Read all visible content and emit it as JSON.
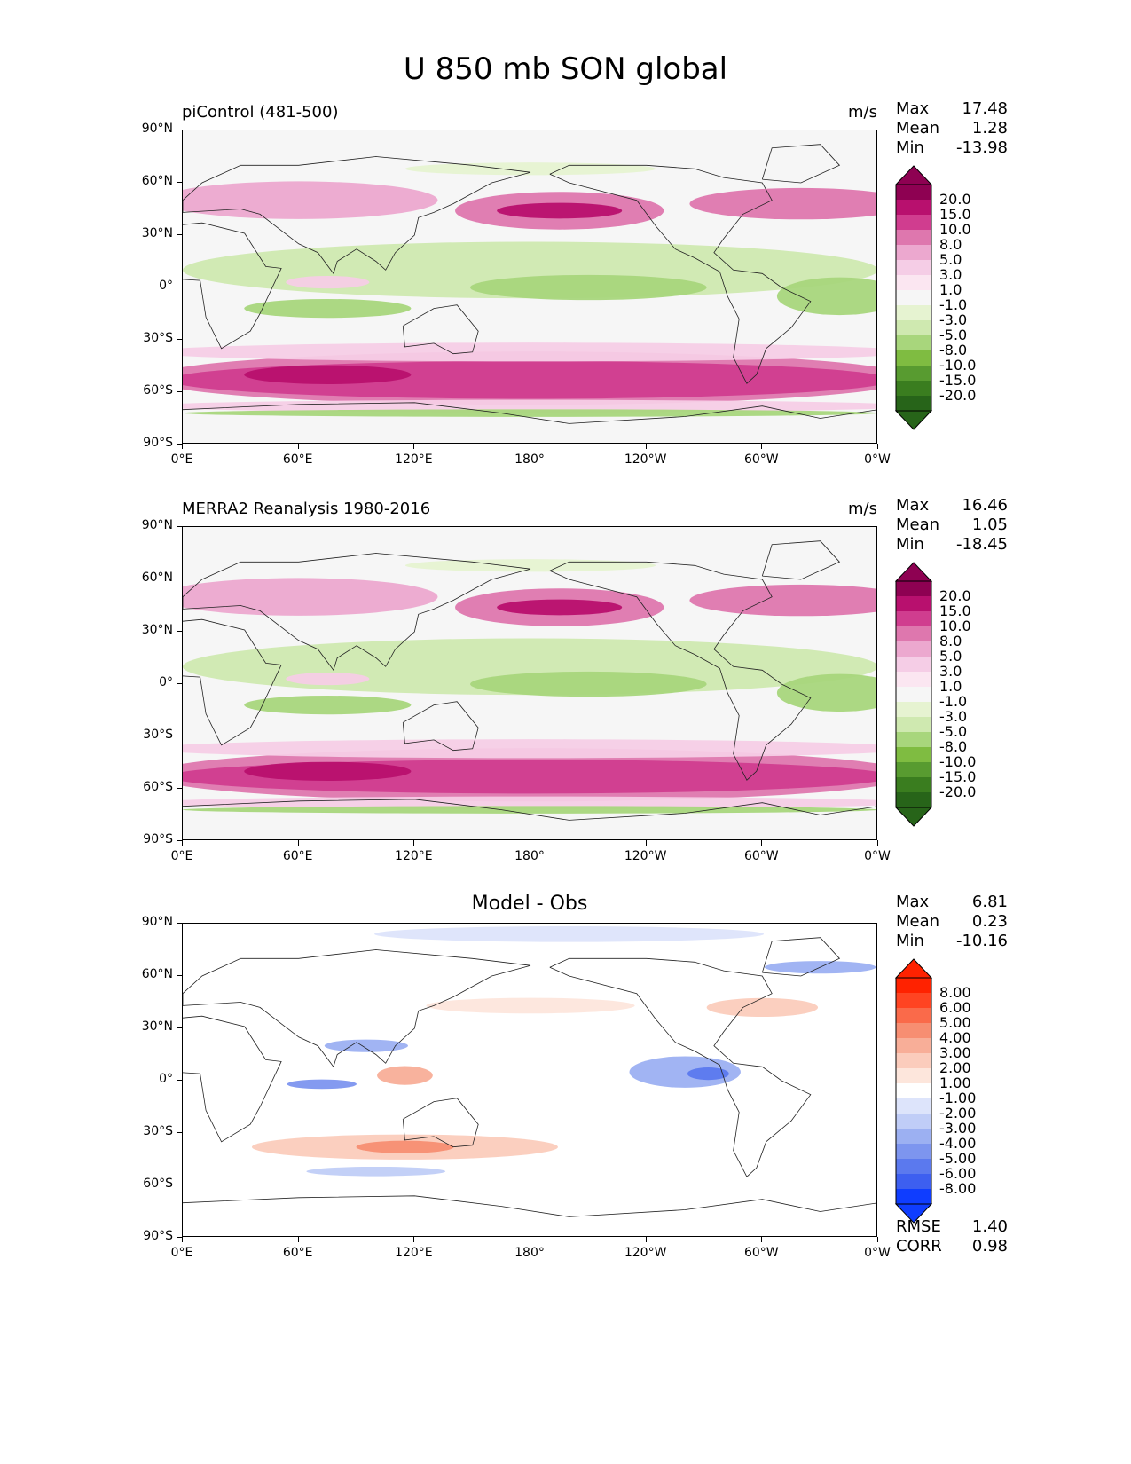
{
  "title": "U 850 mb SON global",
  "axes": {
    "x_ticks": [
      "0°E",
      "60°E",
      "120°E",
      "180°",
      "120°W",
      "60°W",
      "0°W"
    ],
    "y_ticks": [
      "90°N",
      "60°N",
      "30°N",
      "0°",
      "30°S",
      "60°S",
      "90°S"
    ]
  },
  "panels": [
    {
      "id": "model",
      "label": "piControl (481-500)",
      "units": "m/s",
      "stats": {
        "max_label": "Max",
        "max": "17.48",
        "mean_label": "Mean",
        "mean": "1.28",
        "min_label": "Min",
        "min": "-13.98"
      }
    },
    {
      "id": "obs",
      "label": "MERRA2 Reanalysis 1980-2016",
      "units": "m/s",
      "stats": {
        "max_label": "Max",
        "max": "16.46",
        "mean_label": "Mean",
        "mean": "1.05",
        "min_label": "Min",
        "min": "-18.45"
      }
    },
    {
      "id": "diff",
      "center_title": "Model - Obs",
      "stats": {
        "max_label": "Max",
        "max": "6.81",
        "mean_label": "Mean",
        "mean": "0.23",
        "min_label": "Min",
        "min": "-10.16"
      },
      "metrics": {
        "rmse_label": "RMSE",
        "rmse": "1.40",
        "corr_label": "CORR",
        "corr": "0.98"
      }
    }
  ],
  "colorbar_main": {
    "labels": [
      "20.0",
      "15.0",
      "10.0",
      "8.0",
      "5.0",
      "3.0",
      "1.0",
      "-1.0",
      "-3.0",
      "-5.0",
      "-8.0",
      "-10.0",
      "-15.0",
      "-20.0"
    ],
    "colors": [
      "#8e0152",
      "#b8106e",
      "#d03d8f",
      "#de77ae",
      "#eca8cf",
      "#f5cde6",
      "#fbe6f1",
      "#f6f6f6",
      "#e6f3d1",
      "#cfe9b0",
      "#a8d67c",
      "#7fbc41",
      "#589b30",
      "#3a7d1f",
      "#276419"
    ]
  },
  "colorbar_diff": {
    "labels": [
      "8.00",
      "6.00",
      "5.00",
      "4.00",
      "3.00",
      "2.00",
      "1.00",
      "-1.00",
      "-2.00",
      "-3.00",
      "-4.00",
      "-5.00",
      "-6.00",
      "-8.00"
    ],
    "colors": [
      "#ff2200",
      "#ff4422",
      "#fa6a4a",
      "#f78e72",
      "#f8ae98",
      "#fbccbc",
      "#fde6dc",
      "#ffffff",
      "#dde4fb",
      "#c0cdf7",
      "#9cb0f2",
      "#7d95ef",
      "#5b79ee",
      "#3d5ff0",
      "#0f3dff"
    ]
  }
}
